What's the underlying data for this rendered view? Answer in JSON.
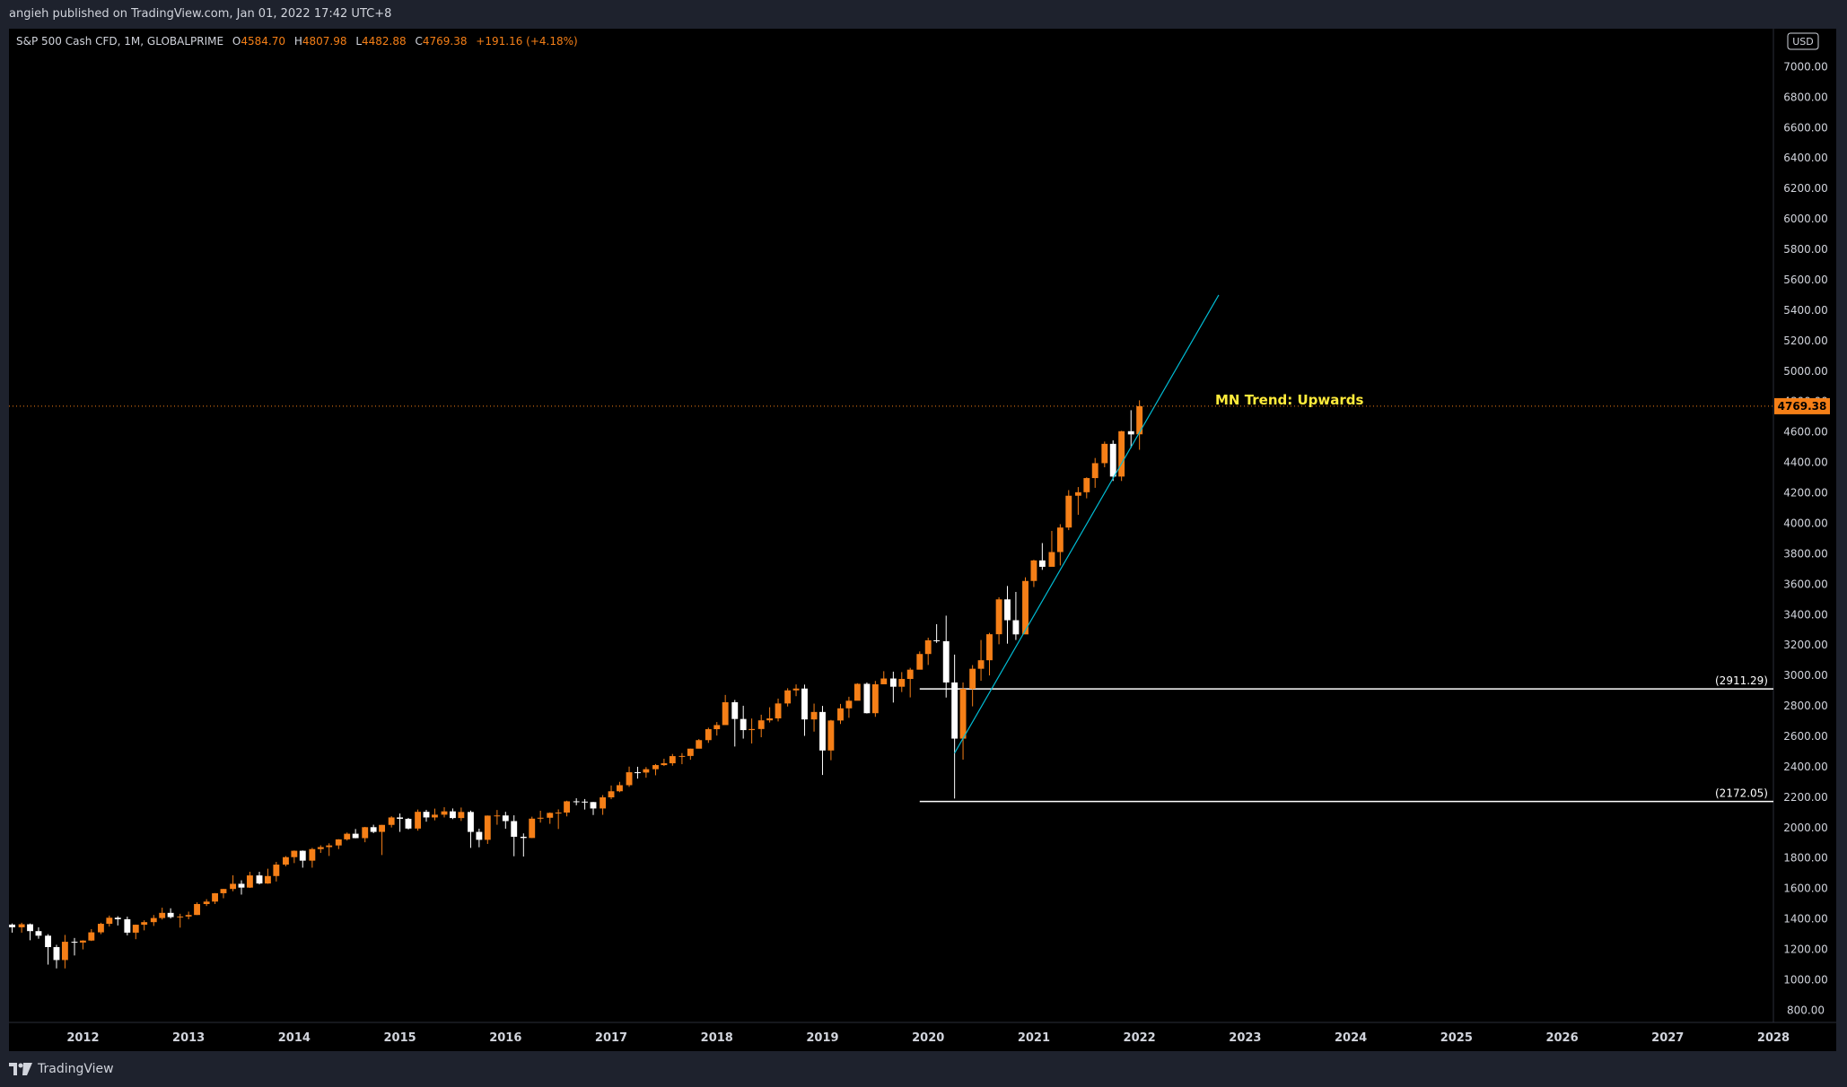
{
  "header": {
    "published_text": "angieh published on TradingView.com, Jan 01, 2022 17:42 UTC+8"
  },
  "footer": {
    "brand": "TradingView"
  },
  "legend": {
    "symbol": "S&P 500 Cash CFD, 1M, GLOBALPRIME",
    "o_label": "O",
    "o_value": "4584.70",
    "h_label": "H",
    "h_value": "4807.98",
    "l_label": "L",
    "l_value": "4482.88",
    "c_label": "C",
    "c_value": "4769.38",
    "change": "+191.16 (+4.18%)"
  },
  "colors": {
    "background": "#000000",
    "frame": "#1e222d",
    "up": "#f57f17",
    "down": "#ffffff",
    "trendline": "#00bcd4",
    "annotation": "#ffeb3b",
    "axis_text": "#d1d4dc",
    "price_tag": "#f57f17"
  },
  "chart_data": {
    "type": "candlestick",
    "currency": "USD",
    "x_labels": [
      "2012",
      "2013",
      "2014",
      "2015",
      "2016",
      "2017",
      "2018",
      "2019",
      "2020",
      "2021",
      "2022",
      "2023",
      "2024",
      "2025",
      "2026",
      "2027",
      "2028"
    ],
    "y_ticks": [
      800,
      1000,
      1200,
      1400,
      1600,
      1800,
      2000,
      2200,
      2400,
      2600,
      2800,
      3000,
      3200,
      3400,
      3600,
      3800,
      4000,
      4200,
      4400,
      4600,
      4800,
      5000,
      5200,
      5400,
      5600,
      5800,
      6000,
      6200,
      6400,
      6600,
      6800,
      7000
    ],
    "ylim": [
      720,
      7250
    ],
    "xlim": [
      2011.3,
      2028.0
    ],
    "last_price": "4769.38",
    "annotation": "MN Trend: Upwards",
    "levels": [
      {
        "label": "(2911.29)",
        "value": 2911.29,
        "x_start": 2019.92
      },
      {
        "label": "(2172.05)",
        "value": 2172.05,
        "x_start": 2019.92
      }
    ],
    "trendline": {
      "x1": 2020.25,
      "y1": 2490,
      "x2": 2022.75,
      "y2": 5500
    },
    "candles": [
      {
        "t": 2011.33,
        "o": 1363,
        "h": 1370,
        "l": 1310,
        "c": 1345
      },
      {
        "t": 2011.42,
        "o": 1345,
        "h": 1375,
        "l": 1310,
        "c": 1365
      },
      {
        "t": 2011.5,
        "o": 1365,
        "h": 1370,
        "l": 1260,
        "c": 1320
      },
      {
        "t": 2011.58,
        "o": 1320,
        "h": 1345,
        "l": 1270,
        "c": 1290
      },
      {
        "t": 2011.67,
        "o": 1290,
        "h": 1300,
        "l": 1100,
        "c": 1215
      },
      {
        "t": 2011.75,
        "o": 1215,
        "h": 1230,
        "l": 1075,
        "c": 1130
      },
      {
        "t": 2011.83,
        "o": 1130,
        "h": 1295,
        "l": 1075,
        "c": 1250
      },
      {
        "t": 2011.92,
        "o": 1250,
        "h": 1275,
        "l": 1160,
        "c": 1245
      },
      {
        "t": 2012.0,
        "o": 1245,
        "h": 1260,
        "l": 1200,
        "c": 1258
      },
      {
        "t": 2012.08,
        "o": 1258,
        "h": 1333,
        "l": 1255,
        "c": 1312
      },
      {
        "t": 2012.17,
        "o": 1312,
        "h": 1375,
        "l": 1300,
        "c": 1368
      },
      {
        "t": 2012.25,
        "o": 1368,
        "h": 1422,
        "l": 1350,
        "c": 1408
      },
      {
        "t": 2012.33,
        "o": 1408,
        "h": 1418,
        "l": 1357,
        "c": 1398
      },
      {
        "t": 2012.42,
        "o": 1398,
        "h": 1415,
        "l": 1292,
        "c": 1310
      },
      {
        "t": 2012.5,
        "o": 1310,
        "h": 1363,
        "l": 1267,
        "c": 1362
      },
      {
        "t": 2012.58,
        "o": 1362,
        "h": 1391,
        "l": 1325,
        "c": 1379
      },
      {
        "t": 2012.67,
        "o": 1379,
        "h": 1426,
        "l": 1354,
        "c": 1406
      },
      {
        "t": 2012.75,
        "o": 1406,
        "h": 1474,
        "l": 1396,
        "c": 1440
      },
      {
        "t": 2012.83,
        "o": 1440,
        "h": 1470,
        "l": 1403,
        "c": 1412
      },
      {
        "t": 2012.92,
        "o": 1412,
        "h": 1434,
        "l": 1343,
        "c": 1416
      },
      {
        "t": 2013.0,
        "o": 1416,
        "h": 1448,
        "l": 1398,
        "c": 1426
      },
      {
        "t": 2013.08,
        "o": 1426,
        "h": 1509,
        "l": 1426,
        "c": 1498
      },
      {
        "t": 2013.17,
        "o": 1498,
        "h": 1530,
        "l": 1485,
        "c": 1514
      },
      {
        "t": 2013.25,
        "o": 1514,
        "h": 1570,
        "l": 1498,
        "c": 1569
      },
      {
        "t": 2013.33,
        "o": 1569,
        "h": 1597,
        "l": 1536,
        "c": 1597
      },
      {
        "t": 2013.42,
        "o": 1597,
        "h": 1687,
        "l": 1582,
        "c": 1631
      },
      {
        "t": 2013.5,
        "o": 1631,
        "h": 1654,
        "l": 1560,
        "c": 1606
      },
      {
        "t": 2013.58,
        "o": 1606,
        "h": 1710,
        "l": 1604,
        "c": 1686
      },
      {
        "t": 2013.67,
        "o": 1686,
        "h": 1710,
        "l": 1627,
        "c": 1633
      },
      {
        "t": 2013.75,
        "o": 1633,
        "h": 1730,
        "l": 1631,
        "c": 1682
      },
      {
        "t": 2013.83,
        "o": 1682,
        "h": 1775,
        "l": 1646,
        "c": 1757
      },
      {
        "t": 2013.92,
        "o": 1757,
        "h": 1813,
        "l": 1746,
        "c": 1806
      },
      {
        "t": 2014.0,
        "o": 1806,
        "h": 1850,
        "l": 1767,
        "c": 1848
      },
      {
        "t": 2014.08,
        "o": 1848,
        "h": 1850,
        "l": 1737,
        "c": 1783
      },
      {
        "t": 2014.17,
        "o": 1783,
        "h": 1867,
        "l": 1737,
        "c": 1859
      },
      {
        "t": 2014.25,
        "o": 1859,
        "h": 1884,
        "l": 1834,
        "c": 1872
      },
      {
        "t": 2014.33,
        "o": 1872,
        "h": 1897,
        "l": 1814,
        "c": 1883
      },
      {
        "t": 2014.42,
        "o": 1883,
        "h": 1924,
        "l": 1859,
        "c": 1923
      },
      {
        "t": 2014.5,
        "o": 1923,
        "h": 1968,
        "l": 1915,
        "c": 1960
      },
      {
        "t": 2014.58,
        "o": 1960,
        "h": 1991,
        "l": 1930,
        "c": 1931
      },
      {
        "t": 2014.67,
        "o": 1931,
        "h": 2005,
        "l": 1904,
        "c": 2003
      },
      {
        "t": 2014.75,
        "o": 2003,
        "h": 2019,
        "l": 1964,
        "c": 1972
      },
      {
        "t": 2014.83,
        "o": 1972,
        "h": 2018,
        "l": 1820,
        "c": 2018
      },
      {
        "t": 2014.92,
        "o": 2018,
        "h": 2075,
        "l": 2001,
        "c": 2067
      },
      {
        "t": 2015.0,
        "o": 2067,
        "h": 2093,
        "l": 1972,
        "c": 2058
      },
      {
        "t": 2015.08,
        "o": 2058,
        "h": 2064,
        "l": 1988,
        "c": 1994
      },
      {
        "t": 2015.17,
        "o": 1994,
        "h": 2119,
        "l": 1980,
        "c": 2104
      },
      {
        "t": 2015.25,
        "o": 2104,
        "h": 2117,
        "l": 2039,
        "c": 2067
      },
      {
        "t": 2015.33,
        "o": 2067,
        "h": 2125,
        "l": 2048,
        "c": 2085
      },
      {
        "t": 2015.42,
        "o": 2085,
        "h": 2134,
        "l": 2067,
        "c": 2107
      },
      {
        "t": 2015.5,
        "o": 2107,
        "h": 2126,
        "l": 2056,
        "c": 2063
      },
      {
        "t": 2015.58,
        "o": 2063,
        "h": 2132,
        "l": 2044,
        "c": 2103
      },
      {
        "t": 2015.67,
        "o": 2103,
        "h": 2112,
        "l": 1867,
        "c": 1972
      },
      {
        "t": 2015.75,
        "o": 1972,
        "h": 1993,
        "l": 1871,
        "c": 1920
      },
      {
        "t": 2015.83,
        "o": 1920,
        "h": 2080,
        "l": 1893,
        "c": 2079
      },
      {
        "t": 2015.92,
        "o": 2079,
        "h": 2116,
        "l": 2019,
        "c": 2080
      },
      {
        "t": 2016.0,
        "o": 2080,
        "h": 2104,
        "l": 1993,
        "c": 2043
      },
      {
        "t": 2016.08,
        "o": 2043,
        "h": 2081,
        "l": 1812,
        "c": 1940
      },
      {
        "t": 2016.17,
        "o": 1940,
        "h": 1962,
        "l": 1810,
        "c": 1932
      },
      {
        "t": 2016.25,
        "o": 1932,
        "h": 2072,
        "l": 1931,
        "c": 2059
      },
      {
        "t": 2016.33,
        "o": 2059,
        "h": 2111,
        "l": 2033,
        "c": 2065
      },
      {
        "t": 2016.42,
        "o": 2065,
        "h": 2100,
        "l": 2025,
        "c": 2097
      },
      {
        "t": 2016.5,
        "o": 2097,
        "h": 2120,
        "l": 1991,
        "c": 2099
      },
      {
        "t": 2016.58,
        "o": 2099,
        "h": 2177,
        "l": 2074,
        "c": 2173
      },
      {
        "t": 2016.67,
        "o": 2173,
        "h": 2193,
        "l": 2147,
        "c": 2171
      },
      {
        "t": 2016.75,
        "o": 2171,
        "h": 2188,
        "l": 2119,
        "c": 2168
      },
      {
        "t": 2016.83,
        "o": 2168,
        "h": 2169,
        "l": 2083,
        "c": 2126
      },
      {
        "t": 2016.92,
        "o": 2126,
        "h": 2214,
        "l": 2084,
        "c": 2199
      },
      {
        "t": 2017.0,
        "o": 2199,
        "h": 2277,
        "l": 2187,
        "c": 2239
      },
      {
        "t": 2017.08,
        "o": 2239,
        "h": 2301,
        "l": 2233,
        "c": 2279
      },
      {
        "t": 2017.17,
        "o": 2279,
        "h": 2401,
        "l": 2268,
        "c": 2364
      },
      {
        "t": 2017.25,
        "o": 2364,
        "h": 2400,
        "l": 2322,
        "c": 2362
      },
      {
        "t": 2017.33,
        "o": 2362,
        "h": 2398,
        "l": 2328,
        "c": 2384
      },
      {
        "t": 2017.42,
        "o": 2384,
        "h": 2418,
        "l": 2344,
        "c": 2411
      },
      {
        "t": 2017.5,
        "o": 2411,
        "h": 2453,
        "l": 2405,
        "c": 2423
      },
      {
        "t": 2017.58,
        "o": 2423,
        "h": 2484,
        "l": 2407,
        "c": 2470
      },
      {
        "t": 2017.67,
        "o": 2470,
        "h": 2490,
        "l": 2417,
        "c": 2471
      },
      {
        "t": 2017.75,
        "o": 2471,
        "h": 2519,
        "l": 2446,
        "c": 2519
      },
      {
        "t": 2017.83,
        "o": 2519,
        "h": 2582,
        "l": 2521,
        "c": 2575
      },
      {
        "t": 2017.92,
        "o": 2575,
        "h": 2657,
        "l": 2557,
        "c": 2647
      },
      {
        "t": 2018.0,
        "o": 2647,
        "h": 2694,
        "l": 2605,
        "c": 2674
      },
      {
        "t": 2018.08,
        "o": 2674,
        "h": 2872,
        "l": 2682,
        "c": 2824
      },
      {
        "t": 2018.17,
        "o": 2824,
        "h": 2839,
        "l": 2533,
        "c": 2714
      },
      {
        "t": 2018.25,
        "o": 2714,
        "h": 2801,
        "l": 2585,
        "c": 2641
      },
      {
        "t": 2018.33,
        "o": 2641,
        "h": 2717,
        "l": 2553,
        "c": 2648
      },
      {
        "t": 2018.42,
        "o": 2648,
        "h": 2742,
        "l": 2594,
        "c": 2705
      },
      {
        "t": 2018.5,
        "o": 2705,
        "h": 2791,
        "l": 2691,
        "c": 2718
      },
      {
        "t": 2018.58,
        "o": 2718,
        "h": 2848,
        "l": 2698,
        "c": 2816
      },
      {
        "t": 2018.67,
        "o": 2816,
        "h": 2916,
        "l": 2796,
        "c": 2902
      },
      {
        "t": 2018.75,
        "o": 2902,
        "h": 2941,
        "l": 2864,
        "c": 2914
      },
      {
        "t": 2018.83,
        "o": 2914,
        "h": 2940,
        "l": 2603,
        "c": 2711
      },
      {
        "t": 2018.92,
        "o": 2711,
        "h": 2815,
        "l": 2631,
        "c": 2760
      },
      {
        "t": 2019.0,
        "o": 2760,
        "h": 2800,
        "l": 2346,
        "c": 2507
      },
      {
        "t": 2019.08,
        "o": 2507,
        "h": 2708,
        "l": 2443,
        "c": 2704
      },
      {
        "t": 2019.17,
        "o": 2704,
        "h": 2813,
        "l": 2681,
        "c": 2784
      },
      {
        "t": 2019.25,
        "o": 2784,
        "h": 2860,
        "l": 2722,
        "c": 2834
      },
      {
        "t": 2019.33,
        "o": 2834,
        "h": 2949,
        "l": 2848,
        "c": 2945
      },
      {
        "t": 2019.42,
        "o": 2945,
        "h": 2954,
        "l": 2750,
        "c": 2752
      },
      {
        "t": 2019.5,
        "o": 2752,
        "h": 2964,
        "l": 2728,
        "c": 2942
      },
      {
        "t": 2019.58,
        "o": 2942,
        "h": 3028,
        "l": 2952,
        "c": 2980
      },
      {
        "t": 2019.67,
        "o": 2980,
        "h": 3025,
        "l": 2822,
        "c": 2926
      },
      {
        "t": 2019.75,
        "o": 2926,
        "h": 3022,
        "l": 2891,
        "c": 2977
      },
      {
        "t": 2019.83,
        "o": 2977,
        "h": 3050,
        "l": 2856,
        "c": 3038
      },
      {
        "t": 2019.92,
        "o": 3038,
        "h": 3158,
        "l": 3050,
        "c": 3141
      },
      {
        "t": 2020.0,
        "o": 3141,
        "h": 3248,
        "l": 3069,
        "c": 3231
      },
      {
        "t": 2020.08,
        "o": 3231,
        "h": 3337,
        "l": 3214,
        "c": 3225
      },
      {
        "t": 2020.17,
        "o": 3225,
        "h": 3393,
        "l": 2855,
        "c": 2954
      },
      {
        "t": 2020.25,
        "o": 2954,
        "h": 3137,
        "l": 2191,
        "c": 2585
      },
      {
        "t": 2020.33,
        "o": 2585,
        "h": 2954,
        "l": 2447,
        "c": 2912
      },
      {
        "t": 2020.42,
        "o": 2912,
        "h": 3068,
        "l": 2797,
        "c": 3044
      },
      {
        "t": 2020.5,
        "o": 3044,
        "h": 3233,
        "l": 2965,
        "c": 3100
      },
      {
        "t": 2020.58,
        "o": 3100,
        "h": 3280,
        "l": 3000,
        "c": 3271
      },
      {
        "t": 2020.67,
        "o": 3271,
        "h": 3514,
        "l": 3205,
        "c": 3500
      },
      {
        "t": 2020.75,
        "o": 3500,
        "h": 3588,
        "l": 3209,
        "c": 3363
      },
      {
        "t": 2020.83,
        "o": 3363,
        "h": 3549,
        "l": 3233,
        "c": 3270
      },
      {
        "t": 2020.92,
        "o": 3270,
        "h": 3645,
        "l": 3279,
        "c": 3621
      },
      {
        "t": 2021.0,
        "o": 3621,
        "h": 3760,
        "l": 3581,
        "c": 3756
      },
      {
        "t": 2021.08,
        "o": 3756,
        "h": 3870,
        "l": 3694,
        "c": 3714
      },
      {
        "t": 2021.17,
        "o": 3714,
        "h": 3950,
        "l": 3723,
        "c": 3811
      },
      {
        "t": 2021.25,
        "o": 3811,
        "h": 3994,
        "l": 3723,
        "c": 3972
      },
      {
        "t": 2021.33,
        "o": 3972,
        "h": 4218,
        "l": 3955,
        "c": 4181
      },
      {
        "t": 2021.42,
        "o": 4181,
        "h": 4238,
        "l": 4056,
        "c": 4204
      },
      {
        "t": 2021.5,
        "o": 4204,
        "h": 4302,
        "l": 4164,
        "c": 4297
      },
      {
        "t": 2021.58,
        "o": 4297,
        "h": 4429,
        "l": 4233,
        "c": 4395
      },
      {
        "t": 2021.67,
        "o": 4395,
        "h": 4537,
        "l": 4368,
        "c": 4522
      },
      {
        "t": 2021.75,
        "o": 4522,
        "h": 4545,
        "l": 4278,
        "c": 4307
      },
      {
        "t": 2021.83,
        "o": 4307,
        "h": 4608,
        "l": 4278,
        "c": 4605
      },
      {
        "t": 2021.92,
        "o": 4605,
        "h": 4743,
        "l": 4495,
        "c": 4584
      },
      {
        "t": 2022.0,
        "o": 4584.7,
        "h": 4807.98,
        "l": 4482.88,
        "c": 4769.38
      }
    ]
  }
}
